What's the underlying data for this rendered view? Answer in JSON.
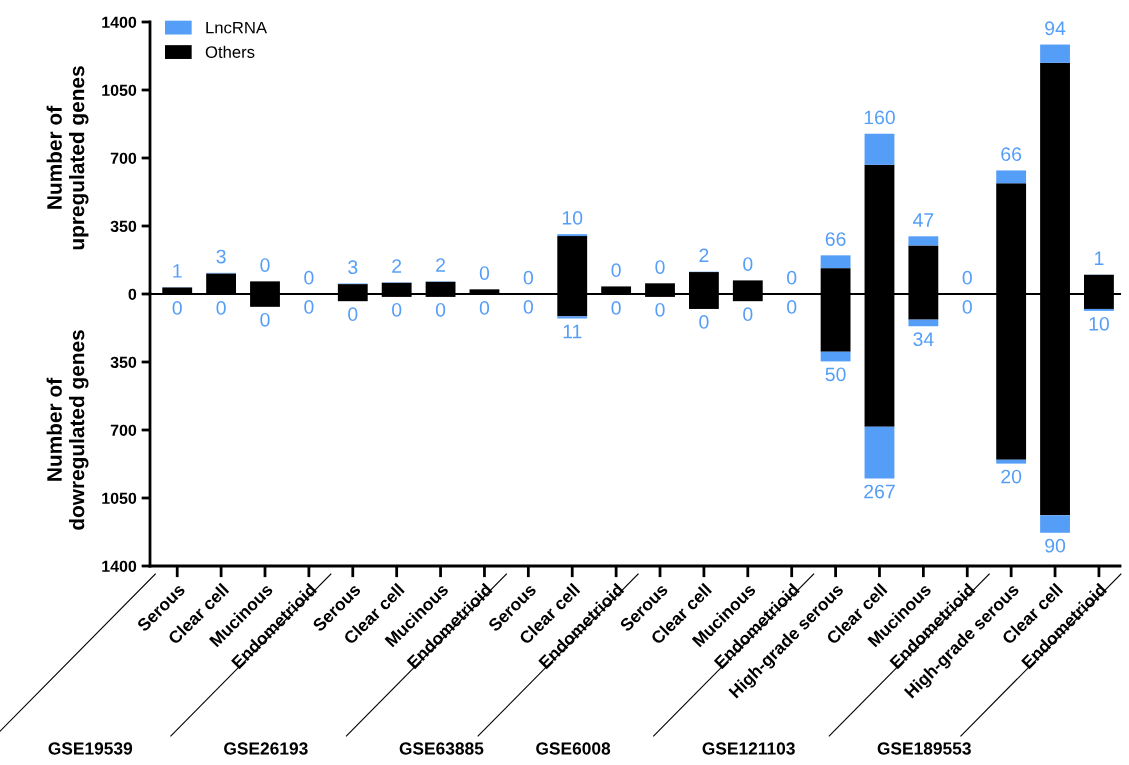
{
  "chart_data": [
    {
      "type": "bar",
      "stacked": true,
      "tick_labels": "y",
      "ylabel": "Number of\nupregulated genes",
      "categories": [
        null,
        null,
        null,
        null,
        null,
        null,
        null,
        null,
        null,
        null,
        null,
        null,
        null,
        null,
        null,
        null,
        null,
        null,
        null,
        null,
        null,
        null
      ],
      "series": [
        {
          "name": "Others",
          "color": "#000000",
          "values": [
            34,
            106,
            65,
            0,
            51,
            58,
            63,
            24,
            0,
            298,
            39,
            55,
            113,
            70,
            0,
            133,
            665,
            250,
            0,
            570,
            1190,
            99
          ]
        },
        {
          "name": "LncRNA",
          "color": "#559ef8",
          "values": [
            1,
            3,
            0,
            0,
            3,
            2,
            2,
            0,
            0,
            10,
            0,
            0,
            2,
            0,
            0,
            66,
            160,
            47,
            0,
            66,
            94,
            1
          ],
          "value_labels": [
            "1",
            "3",
            "0",
            "0",
            "3",
            "2",
            "2",
            "0",
            "0",
            "10",
            "0",
            "0",
            "2",
            "0",
            "0",
            "66",
            "160",
            "47",
            "0",
            "66",
            "94",
            "1"
          ]
        }
      ],
      "ylim": [
        0,
        1400
      ],
      "yticks": [
        0,
        350,
        700,
        1050,
        1400
      ],
      "legend": "top left"
    },
    {
      "type": "bar",
      "stacked": true,
      "ylabel": "Number of\ndowregulated genes",
      "annotations": [
        "GSE19539",
        "GSE26193",
        "GSE63885",
        "GSE6008",
        "GSE121103",
        "GSE189553"
      ],
      "categories": [
        "Serous",
        "Clear cell",
        "Mucinous",
        "Endometrioid",
        "Serous",
        "Clear cell",
        "Mucinous",
        "Endometrioid",
        "Serous",
        "Clear cell",
        "Endometrioid",
        "Serous",
        "Clear cell",
        "Mucinous",
        "Endometrioid",
        "High-grade serous",
        "Clear cell",
        "Mucinous",
        "Endometrioid",
        "High-grade serous",
        "Clear cell",
        "Endometrioid"
      ],
      "series": [
        {
          "color": "#000000",
          "values": [
            5,
            5,
            66,
            0,
            37,
            15,
            15,
            5,
            0,
            115,
            5,
            15,
            77,
            37,
            0,
            297,
            683,
            132,
            0,
            853,
            1139,
            77
          ]
        },
        {
          "color": "#559ef8",
          "values": [
            0,
            0,
            0,
            0,
            0,
            0,
            0,
            0,
            0,
            11,
            0,
            0,
            0,
            0,
            0,
            50,
            267,
            34,
            0,
            20,
            90,
            10
          ],
          "value_labels": [
            "0",
            "0",
            "0",
            "0",
            "0",
            "0",
            "0",
            "0",
            "0",
            "11",
            "0",
            "0",
            "0",
            "0",
            "0",
            "50",
            "267",
            "34",
            "0",
            "20",
            "90",
            "10"
          ]
        }
      ],
      "ylim": [
        1400,
        0
      ],
      "yticks": [
        350,
        700,
        1050,
        1400
      ]
    }
  ]
}
